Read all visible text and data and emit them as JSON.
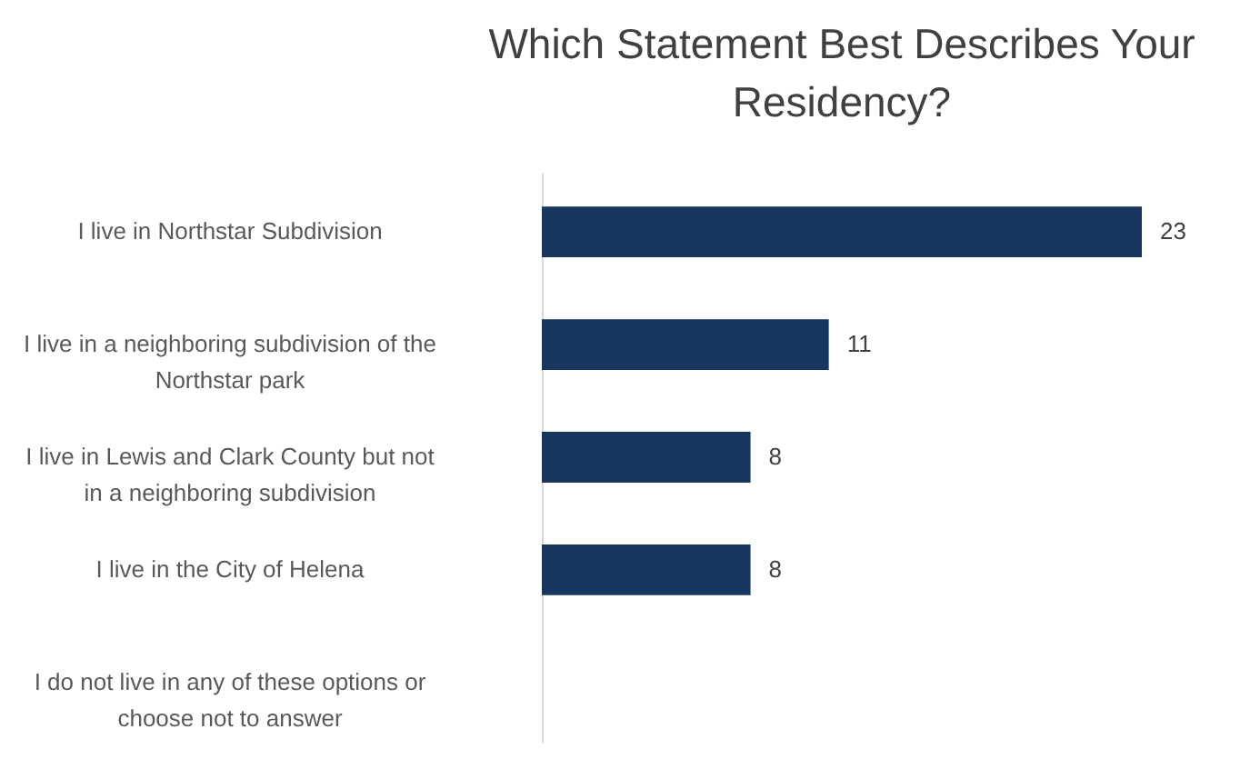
{
  "chart_data": {
    "type": "bar",
    "orientation": "horizontal",
    "title": "Which Statement Best Describes Your Residency?",
    "categories": [
      "I live in Northstar Subdivision",
      "I live in a neighboring subdivision of the Northstar park",
      "I live in Lewis and Clark County but not in a neighboring subdivision",
      "I live in the City of Helena",
      "I do not live in any of these options or choose not to answer"
    ],
    "values": [
      23,
      11,
      8,
      8,
      null
    ],
    "color": "#17375e",
    "data_labels": true
  }
}
